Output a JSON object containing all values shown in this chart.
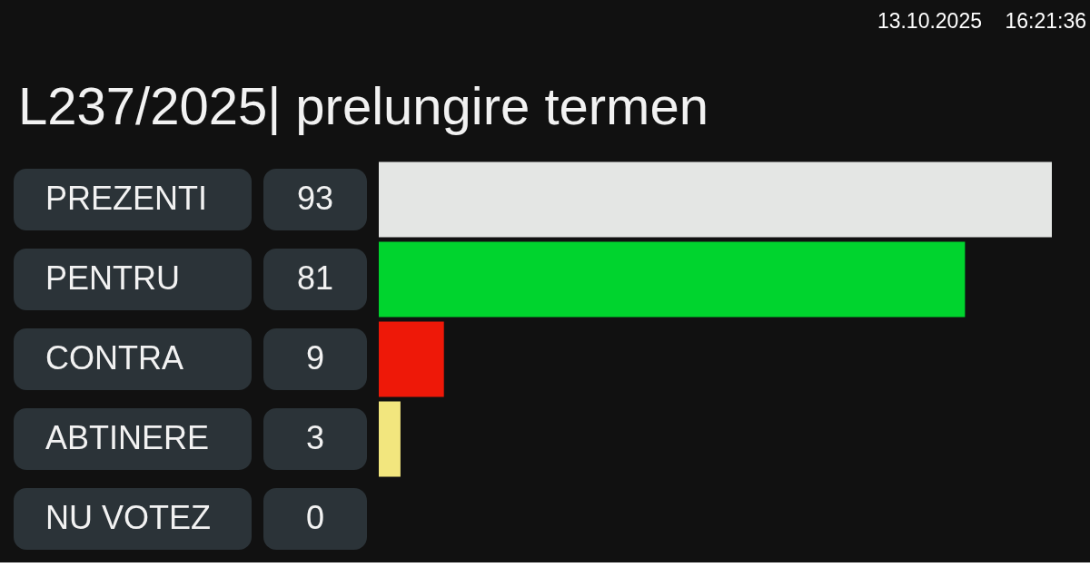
{
  "chart_data": {
    "type": "bar",
    "orientation": "horizontal",
    "title": "L237/2025| prelungire termen",
    "categories": [
      "PREZENTI",
      "PENTRU",
      "CONTRA",
      "ABTINERE",
      "NU VOTEZ"
    ],
    "values": [
      93,
      81,
      9,
      3,
      0
    ],
    "colors": [
      "#e4e6e4",
      "#00d42e",
      "#ee1808",
      "#f2e67e",
      "#888888"
    ],
    "data_labels": true,
    "annotations": [
      "13.10.2025",
      "16:21:36"
    ]
  }
}
